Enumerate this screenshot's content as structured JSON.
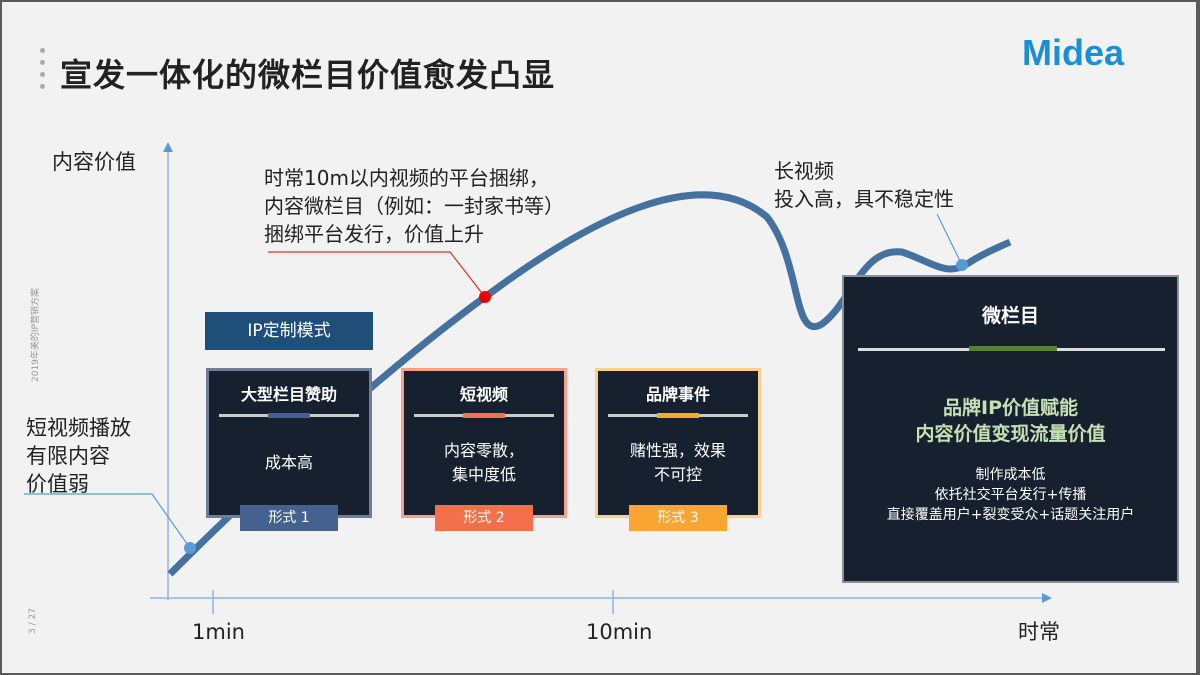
{
  "title": "宣发一体化的微栏目价值愈发凸显",
  "logo": "Midea",
  "side_note": "2019年美的IP营销方案",
  "page_number": "3 / 27",
  "y_axis_label": "内容价值",
  "x_ticks": [
    "1min",
    "10min",
    "时常"
  ],
  "callouts": {
    "left": [
      "短视频播放",
      "有限内容",
      "价值弱"
    ],
    "middle": [
      "时常10m以内视频的平台捆绑，",
      "内容微栏目（例如：一封家书等）",
      "捆绑平台发行，价值上升"
    ],
    "right": [
      "长视频",
      "投入高，具不稳定性"
    ]
  },
  "ip_label": "IP定制模式",
  "cards": [
    {
      "title": "大型栏目赞助",
      "body": [
        "成本高"
      ],
      "tag": "形式 1",
      "color": "#44618f"
    },
    {
      "title": "短视频",
      "body": [
        "内容零散，",
        "集中度低"
      ],
      "tag": "形式 2",
      "color": "#f4704a"
    },
    {
      "title": "品牌事件",
      "body": [
        "赌性强，效果",
        "不可控"
      ],
      "tag": "形式 3",
      "color": "#f8a531"
    }
  ],
  "micro": {
    "title": "微栏目",
    "highlight": [
      "品牌IP价值赋能",
      "内容价值变现流量价值"
    ],
    "body": [
      "制作成本低",
      "依托社交平台发行+传播",
      "直接覆盖用户+裂变受众+话题关注用户"
    ],
    "accent": "#548235"
  }
}
